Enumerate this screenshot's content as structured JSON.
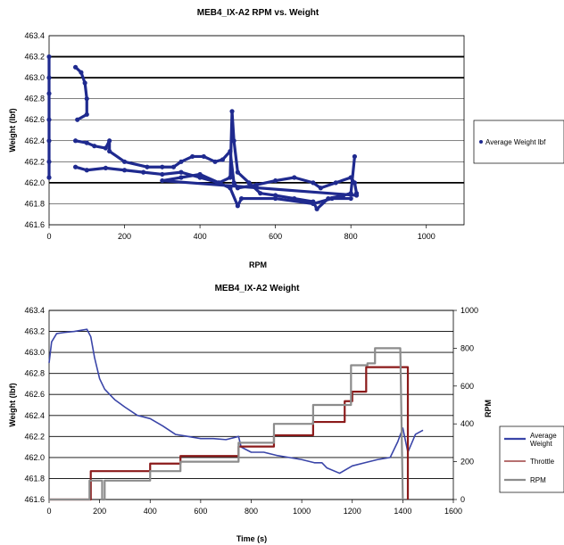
{
  "chart_data": [
    {
      "type": "scatter",
      "title": "MEB4_IX-A2 RPM vs. Weight",
      "xlabel": "RPM",
      "ylabel": "Weight (lbf)",
      "xlim": [
        0,
        1100
      ],
      "ylim": [
        461.6,
        463.4
      ],
      "x_ticks": [
        "0",
        "200",
        "400",
        "600",
        "800",
        "1000"
      ],
      "y_ticks": [
        "461.6",
        "461.8",
        "462.0",
        "462.2",
        "462.4",
        "462.6",
        "462.8",
        "463.0",
        "463.2",
        "463.4"
      ],
      "heavy_gridlines_at": [
        462.0,
        463.0,
        463.2
      ],
      "grid": true,
      "legend_position": "right",
      "series": [
        {
          "name": "Average Weight lbf",
          "color": "#1f2a8f",
          "points": [
            [
              0,
              463.2
            ],
            [
              0,
              463.0
            ],
            [
              0,
              462.85
            ],
            [
              0,
              462.6
            ],
            [
              0,
              462.4
            ],
            [
              0,
              462.2
            ],
            [
              0,
              462.05
            ],
            [
              70,
              463.1
            ],
            [
              85,
              463.05
            ],
            [
              95,
              462.95
            ],
            [
              100,
              462.8
            ],
            [
              100,
              462.65
            ],
            [
              75,
              462.6
            ],
            [
              70,
              462.4
            ],
            [
              100,
              462.38
            ],
            [
              120,
              462.35
            ],
            [
              150,
              462.33
            ],
            [
              160,
              462.4
            ],
            [
              160,
              462.3
            ],
            [
              200,
              462.2
            ],
            [
              260,
              462.15
            ],
            [
              300,
              462.15
            ],
            [
              330,
              462.15
            ],
            [
              350,
              462.2
            ],
            [
              380,
              462.25
            ],
            [
              410,
              462.25
            ],
            [
              440,
              462.2
            ],
            [
              460,
              462.22
            ],
            [
              480,
              462.3
            ],
            [
              490,
              462.0
            ],
            [
              500,
              461.95
            ],
            [
              550,
              461.98
            ],
            [
              600,
              462.02
            ],
            [
              650,
              462.05
            ],
            [
              700,
              462.0
            ],
            [
              720,
              461.95
            ],
            [
              760,
              462.0
            ],
            [
              800,
              462.05
            ],
            [
              810,
              462.0
            ],
            [
              815,
              461.9
            ],
            [
              70,
              462.15
            ],
            [
              100,
              462.12
            ],
            [
              150,
              462.14
            ],
            [
              200,
              462.12
            ],
            [
              250,
              462.1
            ],
            [
              300,
              462.08
            ],
            [
              350,
              462.1
            ],
            [
              400,
              462.05
            ],
            [
              450,
              462.0
            ],
            [
              480,
              462.05
            ],
            [
              485,
              462.68
            ],
            [
              490,
              462.4
            ],
            [
              500,
              462.1
            ],
            [
              530,
              462.0
            ],
            [
              560,
              461.9
            ],
            [
              600,
              461.88
            ],
            [
              650,
              461.85
            ],
            [
              700,
              461.82
            ],
            [
              710,
              461.75
            ],
            [
              740,
              461.85
            ],
            [
              780,
              461.88
            ],
            [
              800,
              461.9
            ],
            [
              810,
              462.25
            ],
            [
              815,
              461.88
            ],
            [
              300,
              462.02
            ],
            [
              350,
              462.05
            ],
            [
              400,
              462.08
            ],
            [
              450,
              462.0
            ],
            [
              480,
              461.95
            ],
            [
              500,
              461.78
            ],
            [
              510,
              461.85
            ],
            [
              600,
              461.85
            ],
            [
              700,
              461.8
            ],
            [
              750,
              461.85
            ],
            [
              800,
              461.85
            ]
          ]
        }
      ]
    },
    {
      "type": "line",
      "title": "MEB4_IX-A2 Weight",
      "xlabel": "Time (s)",
      "ylabel": "Weight (lbf)",
      "y2label": "RPM",
      "xlim": [
        0,
        1600
      ],
      "ylim": [
        461.6,
        463.4
      ],
      "y2lim": [
        0,
        1000
      ],
      "x_ticks": [
        "0",
        "200",
        "400",
        "600",
        "800",
        "1000",
        "1200",
        "1400",
        "1600"
      ],
      "y_ticks": [
        "461.6",
        "461.8",
        "462.0",
        "462.2",
        "462.4",
        "462.6",
        "462.8",
        "463.0",
        "463.2",
        "463.4"
      ],
      "y2_ticks": [
        "0",
        "200",
        "400",
        "600",
        "800",
        "1000"
      ],
      "grid": true,
      "legend_position": "right",
      "series": [
        {
          "name": "Average Weight",
          "axis": "left",
          "color": "#3a45a8",
          "x": [
            0,
            10,
            30,
            60,
            100,
            150,
            165,
            180,
            200,
            220,
            260,
            300,
            350,
            400,
            450,
            500,
            550,
            600,
            650,
            700,
            750,
            760,
            800,
            850,
            900,
            950,
            1000,
            1050,
            1080,
            1100,
            1150,
            1200,
            1250,
            1300,
            1350,
            1380,
            1400,
            1420,
            1450,
            1480
          ],
          "y": [
            462.9,
            463.1,
            463.18,
            463.19,
            463.2,
            463.22,
            463.15,
            462.95,
            462.75,
            462.65,
            462.55,
            462.48,
            462.4,
            462.37,
            462.3,
            462.22,
            462.2,
            462.18,
            462.18,
            462.17,
            462.2,
            462.1,
            462.05,
            462.05,
            462.02,
            462.0,
            461.98,
            461.95,
            461.95,
            461.9,
            461.85,
            461.92,
            461.95,
            461.98,
            462.0,
            462.15,
            462.28,
            462.05,
            462.22,
            462.26
          ]
        },
        {
          "name": "Throttle",
          "axis": "right",
          "color": "#8b1a1a",
          "x": [
            0,
            165,
            165,
            400,
            400,
            520,
            520,
            750,
            750,
            890,
            890,
            1045,
            1045,
            1170,
            1170,
            1200,
            1200,
            1255,
            1255,
            1400,
            1400,
            1420,
            1420
          ],
          "y": [
            0,
            0,
            150,
            150,
            190,
            190,
            230,
            230,
            280,
            280,
            340,
            340,
            410,
            410,
            520,
            520,
            570,
            570,
            700,
            700,
            700,
            700,
            0
          ]
        },
        {
          "name": "RPM",
          "axis": "right",
          "color": "#8c8c8c",
          "x": [
            0,
            160,
            160,
            210,
            210,
            220,
            220,
            240,
            240,
            400,
            400,
            520,
            520,
            750,
            750,
            890,
            890,
            1045,
            1045,
            1195,
            1195,
            1260,
            1260,
            1290,
            1290,
            1390,
            1390,
            1400
          ],
          "y": [
            0,
            0,
            100,
            100,
            0,
            0,
            100,
            100,
            100,
            100,
            150,
            150,
            200,
            200,
            300,
            300,
            400,
            400,
            500,
            500,
            710,
            710,
            720,
            720,
            800,
            800,
            800,
            0
          ]
        }
      ]
    }
  ]
}
